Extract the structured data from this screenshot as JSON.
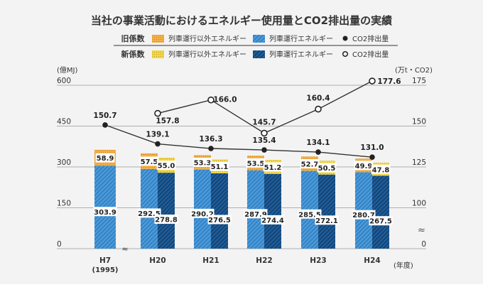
{
  "chart_data": {
    "type": "bar",
    "title": "当社の事業活動におけるエネルギー使用量とCO2排出量の実績",
    "left_unit": "(億MJ)",
    "right_unit": "(万t・CO2)",
    "x_unit": "(年度)",
    "left_ticks": [
      "600",
      "450",
      "300",
      "150",
      "0"
    ],
    "right_ticks": [
      "175",
      "150",
      "125",
      "100",
      "0"
    ],
    "ylim_left": [
      0,
      600
    ],
    "ylim_right": [
      75,
      175
    ],
    "right_axis_break": "≈",
    "categories": [
      {
        "label": "H7",
        "sub": "(1995)"
      },
      {
        "label": "H20",
        "sub": ""
      },
      {
        "label": "H21",
        "sub": ""
      },
      {
        "label": "H22",
        "sub": ""
      },
      {
        "label": "H23",
        "sub": ""
      },
      {
        "label": "H24",
        "sub": ""
      }
    ],
    "axis_break_mark": "≈",
    "legend": {
      "old_label": "旧係数",
      "new_label": "新係数",
      "old_nonrail": "列車運行以外エネルギー",
      "old_rail": "列車運行エネルギー",
      "old_co2": "CO2排出量",
      "new_nonrail": "列車運行以外エネルギー",
      "new_rail": "列車運行エネルギー",
      "new_co2": "CO2排出量"
    },
    "series": [
      {
        "name": "列車運行エネルギー(旧係数)",
        "values": [
          303.9,
          292.5,
          290.2,
          287.9,
          285.5,
          280.7
        ],
        "labels": [
          "303.9",
          "292.5",
          "290.2",
          "287.9",
          "285.5",
          "280.7"
        ]
      },
      {
        "name": "列車運行以外エネルギー(旧係数)",
        "values": [
          58.9,
          57.5,
          53.3,
          53.5,
          52.7,
          49.9
        ],
        "labels": [
          "58.9",
          "57.5",
          "53.3",
          "53.5",
          "52.7",
          "49.9"
        ]
      },
      {
        "name": "列車運行エネルギー(新係数)",
        "values": [
          null,
          278.8,
          276.5,
          274.4,
          272.1,
          267.5
        ],
        "labels": [
          "",
          "278.8",
          "276.5",
          "274.4",
          "272.1",
          "267.5"
        ]
      },
      {
        "name": "列車運行以外エネルギー(新係数)",
        "values": [
          null,
          55.0,
          51.1,
          51.2,
          50.5,
          47.8
        ],
        "labels": [
          "",
          "55.0",
          "51.1",
          "51.2",
          "50.5",
          "47.8"
        ]
      },
      {
        "name": "CO2排出量(旧係数)",
        "values": [
          150.7,
          139.1,
          136.3,
          135.4,
          134.1,
          131.0
        ],
        "labels": [
          "150.7",
          "139.1",
          "136.3",
          "135.4",
          "134.1",
          "131.0"
        ]
      },
      {
        "name": "CO2排出量(新係数)",
        "values": [
          null,
          157.8,
          166.0,
          145.7,
          160.4,
          177.6
        ],
        "labels": [
          "",
          "157.8",
          "166.0",
          "145.7",
          "160.4",
          "177.6"
        ]
      }
    ],
    "colors": {
      "background": "#f3f3f3",
      "rail_fill": "#4d9bd8",
      "rail_stripe": "#2f7ec2",
      "rail_new_fill": "#1e5e9a",
      "rail_new_stripe": "#143f6e",
      "nonrail_fill": "#f2b14a",
      "nonrail_dot": "#d98a1a",
      "nonrail_new_fill": "#f4d84e",
      "nonrail_new_dot": "#c8a81a",
      "line": "#333333",
      "grid": "#999999",
      "text": "#333333"
    }
  }
}
